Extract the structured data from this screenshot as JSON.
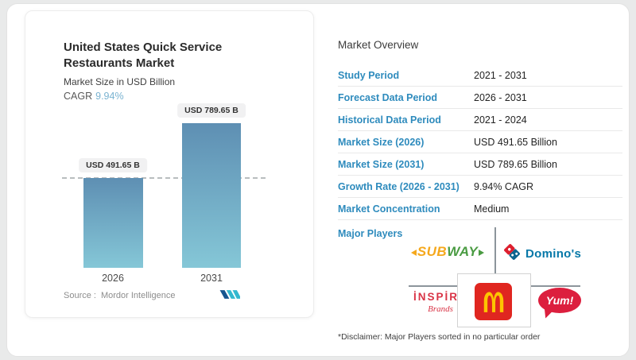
{
  "chart_card": {
    "title": "United States Quick Service Restaurants Market",
    "subtitle": "Market Size in USD Billion",
    "cagr_label": "CAGR",
    "cagr_value": "9.94%",
    "source_label": "Source :",
    "source_name": "Mordor Intelligence"
  },
  "chart_data": {
    "type": "bar",
    "categories": [
      "2026",
      "2031"
    ],
    "values": [
      491.65,
      789.65
    ],
    "value_labels": [
      "USD 491.65 B",
      "USD 789.65 B"
    ],
    "title": "United States Quick Service Restaurants Market",
    "ylabel": "Market Size in USD Billion",
    "cagr": "9.94%",
    "ylim": [
      0,
      800
    ],
    "grid": false,
    "reference_line_at_value": 491.65,
    "bar_gradient_top": "#5e8fb3",
    "bar_gradient_bottom": "#85c7d7"
  },
  "overview": {
    "heading": "Market Overview",
    "rows": [
      {
        "label": "Study Period",
        "value": "2021 - 2031"
      },
      {
        "label": "Forecast Data Period",
        "value": "2026 - 2031"
      },
      {
        "label": "Historical Data Period",
        "value": "2021 - 2024"
      },
      {
        "label": "Market Size (2026)",
        "value": "USD 491.65 Billion"
      },
      {
        "label": "Market Size (2031)",
        "value": "USD 789.65 Billion"
      },
      {
        "label": "Growth Rate (2026 - 2031)",
        "value": "9.94% CAGR"
      },
      {
        "label": "Market Concentration",
        "value": "Medium"
      }
    ],
    "major_players_label": "Major Players",
    "disclaimer": "*Disclaimer: Major Players sorted in no particular order"
  },
  "players": {
    "subway_part1": "SUB",
    "subway_part2": "WAY",
    "dominos": "Domino's",
    "inspire_line1": "İNSPİRE",
    "inspire_line2": "Brands",
    "mcdonalds": "McDonald's",
    "yum": "Yum!"
  },
  "colors": {
    "label_blue": "#2e8bbd",
    "cagr_teal": "#7ab3d1",
    "subway_yellow": "#f5a81c",
    "subway_green": "#4a9b42",
    "dominos_blue": "#0678a8",
    "dominos_red": "#dd1f2e",
    "inspire_red": "#d93446",
    "yum_red": "#dc1f3e",
    "mcdonalds_red": "#e02620",
    "mcdonalds_yellow": "#fdc500"
  }
}
